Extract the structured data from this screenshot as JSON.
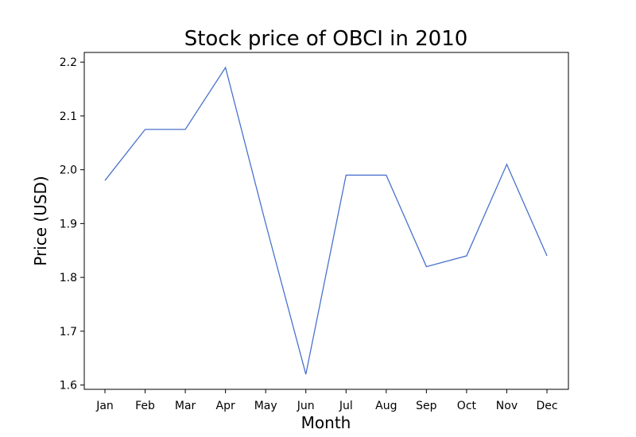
{
  "chart_data": {
    "type": "line",
    "title": "Stock price of OBCI in 2010",
    "xlabel": "Month",
    "ylabel": "Price (USD)",
    "categories": [
      "Jan",
      "Feb",
      "Mar",
      "Apr",
      "May",
      "Jun",
      "Jul",
      "Aug",
      "Sep",
      "Oct",
      "Nov",
      "Dec"
    ],
    "series": [
      {
        "values": [
          1.98,
          2.075,
          2.075,
          2.19,
          1.9,
          1.62,
          1.99,
          1.99,
          1.82,
          1.84,
          2.01,
          1.84
        ],
        "color": "#4a72cc"
      }
    ],
    "yticks": [
      "1.6",
      "1.7",
      "1.8",
      "1.9",
      "2.0",
      "2.1",
      "2.2"
    ],
    "ylim": [
      1.592,
      2.218
    ],
    "grid": false,
    "legend": "none"
  }
}
